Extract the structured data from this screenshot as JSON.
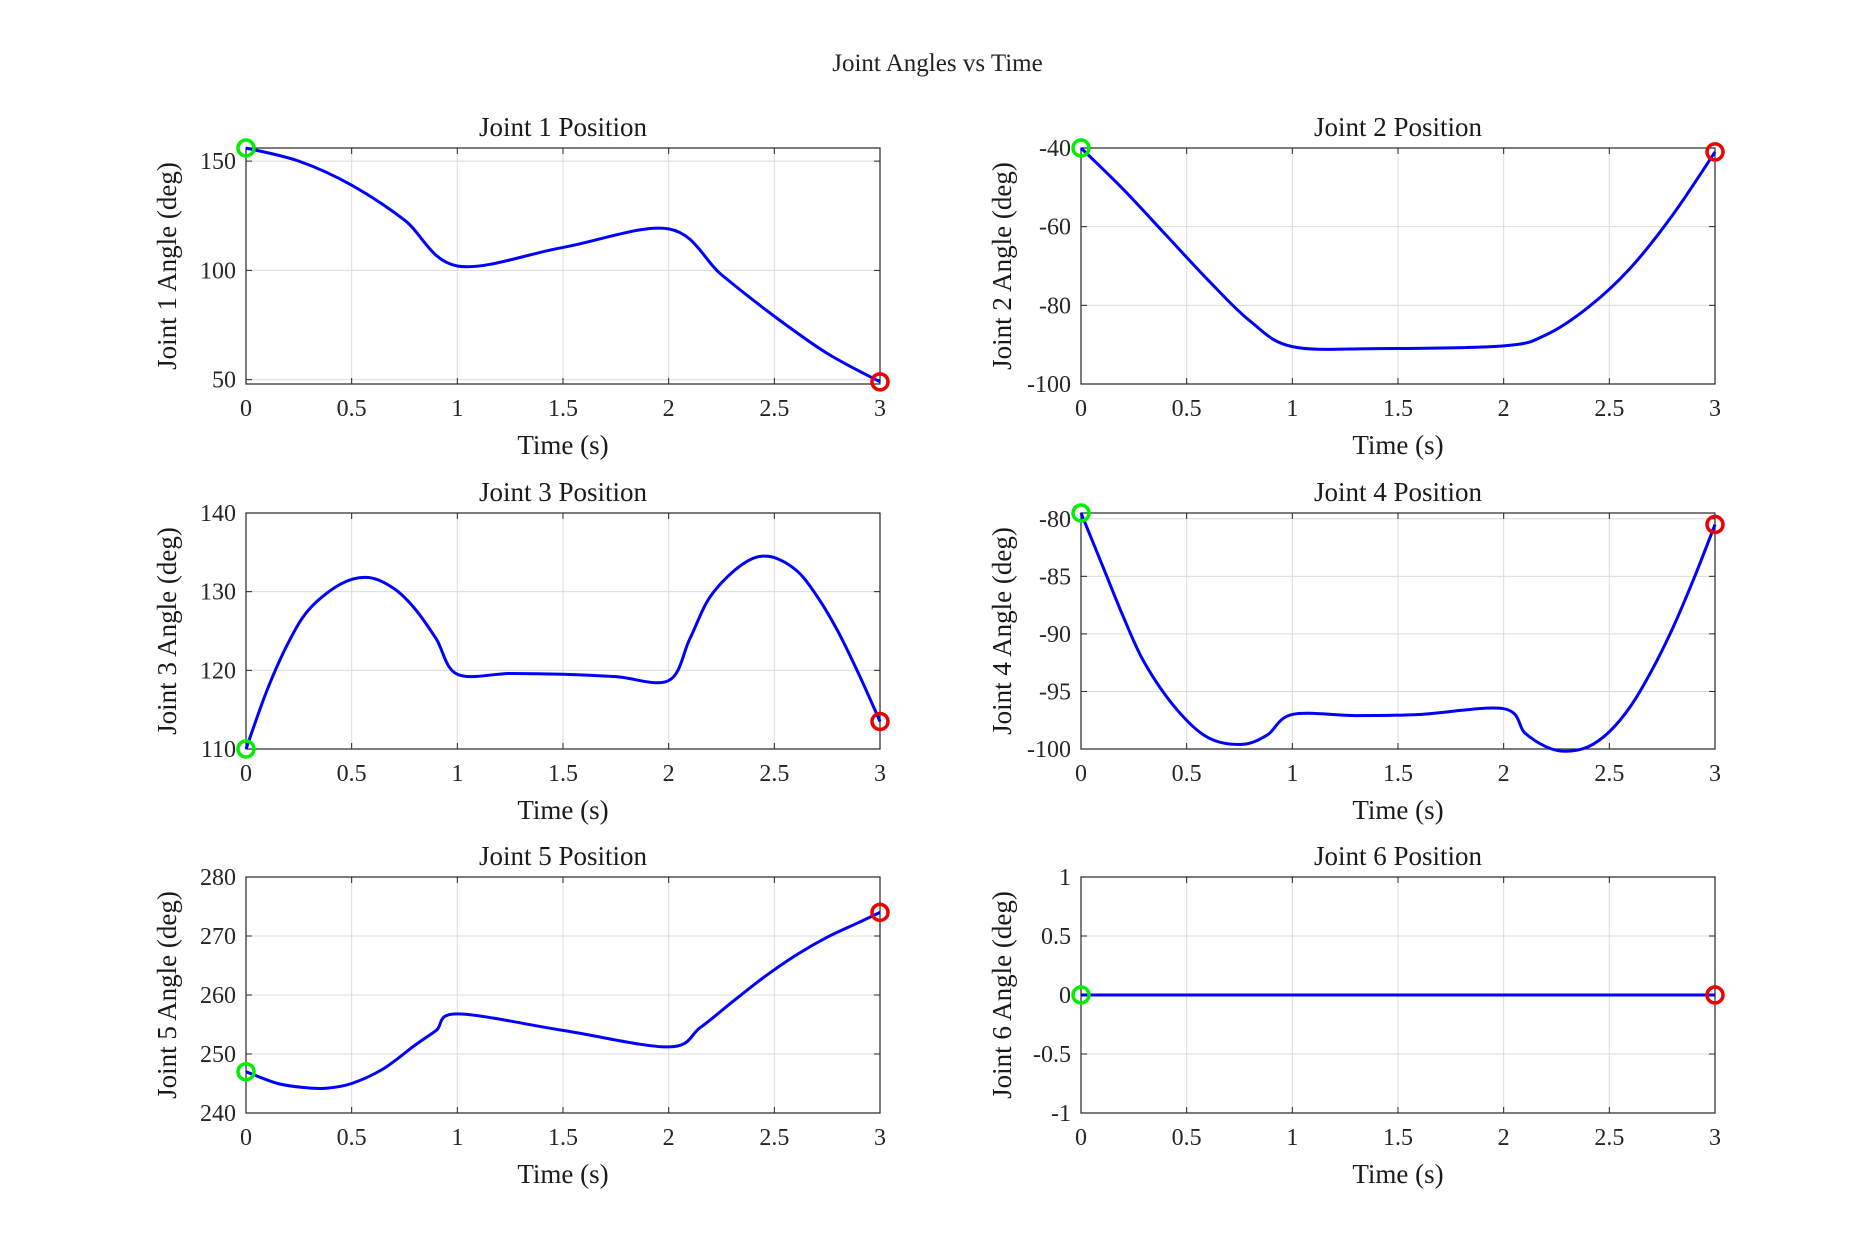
{
  "figure": {
    "title": "Joint Angles vs Time"
  },
  "colors": {
    "line": "#0000ff",
    "start_marker": "#00ee00",
    "end_marker": "#ee0000",
    "grid": "#dcdcdc",
    "axis": "#262626"
  },
  "chart_data": [
    {
      "type": "line",
      "title": "Joint 1 Position",
      "xlabel": "Time (s)",
      "ylabel": "Joint 1 Angle (deg)",
      "xlim": [
        0,
        3
      ],
      "ylim": [
        48,
        156
      ],
      "xticks": [
        0,
        0.5,
        1,
        1.5,
        2,
        2.5,
        3
      ],
      "xtick_labels": [
        "0",
        "0.5",
        "1",
        "1.5",
        "2",
        "2.5",
        "3"
      ],
      "yticks": [
        50,
        100,
        150
      ],
      "ytick_labels": [
        "50",
        "100",
        "150"
      ],
      "grid": true,
      "x": [
        0,
        0.25,
        0.5,
        0.75,
        1,
        1.5,
        2,
        2.25,
        2.5,
        2.75,
        3
      ],
      "y": [
        156,
        150,
        139,
        123,
        102,
        110.5,
        119,
        98,
        79,
        62,
        49
      ],
      "start_marker": {
        "x": 0,
        "y": 156
      },
      "end_marker": {
        "x": 3,
        "y": 49
      }
    },
    {
      "type": "line",
      "title": "Joint 2 Position",
      "xlabel": "Time (s)",
      "ylabel": "Joint 2 Angle (deg)",
      "xlim": [
        0,
        3
      ],
      "ylim": [
        -100,
        -40
      ],
      "xticks": [
        0,
        0.5,
        1,
        1.5,
        2,
        2.5,
        3
      ],
      "xtick_labels": [
        "0",
        "0.5",
        "1",
        "1.5",
        "2",
        "2.5",
        "3"
      ],
      "yticks": [
        -100,
        -80,
        -60,
        -40
      ],
      "ytick_labels": [
        "-100",
        "-80",
        "-60",
        "-40"
      ],
      "grid": true,
      "x": [
        0,
        0.2,
        0.4,
        0.6,
        0.8,
        1,
        1.4,
        2,
        2.2,
        2.4,
        2.6,
        2.8,
        3
      ],
      "y": [
        -40,
        -50.5,
        -62,
        -73.5,
        -84,
        -90.5,
        -91,
        -90.3,
        -87.5,
        -80.5,
        -70.5,
        -57,
        -41
      ],
      "start_marker": {
        "x": 0,
        "y": -40
      },
      "end_marker": {
        "x": 3,
        "y": -41
      }
    },
    {
      "type": "line",
      "title": "Joint 3 Position",
      "xlabel": "Time (s)",
      "ylabel": "Joint 3 Angle (deg)",
      "xlim": [
        0,
        3
      ],
      "ylim": [
        110,
        140
      ],
      "xticks": [
        0,
        0.5,
        1,
        1.5,
        2,
        2.5,
        3
      ],
      "xtick_labels": [
        "0",
        "0.5",
        "1",
        "1.5",
        "2",
        "2.5",
        "3"
      ],
      "yticks": [
        110,
        120,
        130,
        140
      ],
      "ytick_labels": [
        "110",
        "120",
        "130",
        "140"
      ],
      "grid": true,
      "x": [
        0,
        0.1,
        0.2,
        0.3,
        0.45,
        0.58,
        0.7,
        0.8,
        0.9,
        1,
        1.25,
        1.5,
        1.75,
        2,
        2.1,
        2.2,
        2.35,
        2.47,
        2.6,
        2.7,
        2.8,
        2.9,
        3
      ],
      "y": [
        110,
        117.5,
        123.5,
        127.8,
        131,
        131.8,
        130.4,
        127.8,
        124,
        119.5,
        119.6,
        119.5,
        119.2,
        118.7,
        124,
        129.5,
        133.5,
        134.5,
        132.8,
        129.5,
        125,
        119.5,
        113.5
      ],
      "start_marker": {
        "x": 0,
        "y": 110
      },
      "end_marker": {
        "x": 3,
        "y": 113.5
      }
    },
    {
      "type": "line",
      "title": "Joint 4 Position",
      "xlabel": "Time (s)",
      "ylabel": "Joint 4 Angle (deg)",
      "xlim": [
        0,
        3
      ],
      "ylim": [
        -100,
        -79.5
      ],
      "xticks": [
        0,
        0.5,
        1,
        1.5,
        2,
        2.5,
        3
      ],
      "xtick_labels": [
        "0",
        "0.5",
        "1",
        "1.5",
        "2",
        "2.5",
        "3"
      ],
      "yticks": [
        -100,
        -95,
        -90,
        -85,
        -80
      ],
      "ytick_labels": [
        "-100",
        "-95",
        "-90",
        "-85",
        "-80"
      ],
      "grid": true,
      "x": [
        0,
        0.1,
        0.2,
        0.3,
        0.45,
        0.6,
        0.76,
        0.88,
        1,
        1.3,
        1.6,
        2,
        2.1,
        2.2,
        2.29,
        2.4,
        2.5,
        2.6,
        2.7,
        2.8,
        2.9,
        3
      ],
      "y": [
        -79.5,
        -84,
        -88.5,
        -92.5,
        -96.5,
        -99,
        -99.6,
        -98.8,
        -97,
        -97.1,
        -97,
        -96.5,
        -98.6,
        -99.8,
        -100.2,
        -99.8,
        -98.5,
        -96.3,
        -93.2,
        -89.5,
        -85.2,
        -80.5
      ],
      "start_marker": {
        "x": 0,
        "y": -79.5
      },
      "end_marker": {
        "x": 3,
        "y": -80.5
      }
    },
    {
      "type": "line",
      "title": "Joint 5 Position",
      "xlabel": "Time (s)",
      "ylabel": "Joint 5 Angle (deg)",
      "xlim": [
        0,
        3
      ],
      "ylim": [
        240,
        280
      ],
      "xticks": [
        0,
        0.5,
        1,
        1.5,
        2,
        2.5,
        3
      ],
      "xtick_labels": [
        "0",
        "0.5",
        "1",
        "1.5",
        "2",
        "2.5",
        "3"
      ],
      "yticks": [
        240,
        250,
        260,
        270,
        280
      ],
      "ytick_labels": [
        "240",
        "250",
        "260",
        "270",
        "280"
      ],
      "grid": true,
      "x": [
        0,
        0.15,
        0.28,
        0.38,
        0.5,
        0.65,
        0.8,
        0.9,
        1,
        1.5,
        2,
        2.15,
        2.3,
        2.45,
        2.6,
        2.75,
        2.9,
        3
      ],
      "y": [
        247,
        245,
        244.3,
        244.2,
        245,
        247.5,
        251.5,
        254,
        256.8,
        254,
        251.2,
        254.5,
        258.8,
        263,
        266.7,
        269.8,
        272.3,
        274
      ],
      "start_marker": {
        "x": 0,
        "y": 247
      },
      "end_marker": {
        "x": 3,
        "y": 274
      }
    },
    {
      "type": "line",
      "title": "Joint 6 Position",
      "xlabel": "Time (s)",
      "ylabel": "Joint 6 Angle (deg)",
      "xlim": [
        0,
        3
      ],
      "ylim": [
        -1,
        1
      ],
      "xticks": [
        0,
        0.5,
        1,
        1.5,
        2,
        2.5,
        3
      ],
      "xtick_labels": [
        "0",
        "0.5",
        "1",
        "1.5",
        "2",
        "2.5",
        "3"
      ],
      "yticks": [
        -1,
        -0.5,
        0,
        0.5,
        1
      ],
      "ytick_labels": [
        "-1",
        "-0.5",
        "0",
        "0.5",
        "1"
      ],
      "grid": true,
      "x": [
        0,
        3
      ],
      "y": [
        0,
        0
      ],
      "start_marker": {
        "x": 0,
        "y": 0
      },
      "end_marker": {
        "x": 3,
        "y": 0
      }
    }
  ]
}
